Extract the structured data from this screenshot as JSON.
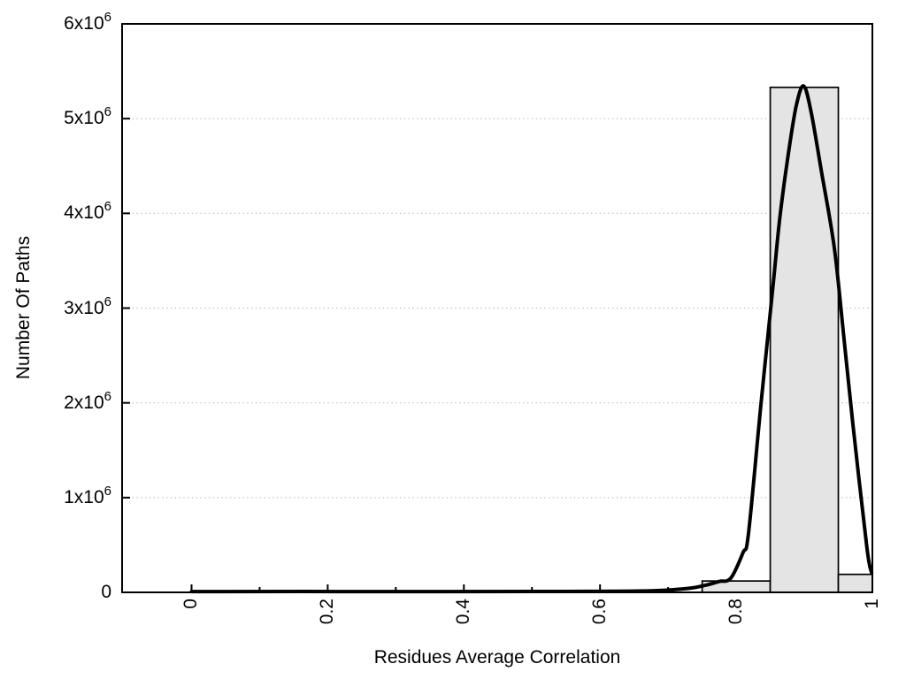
{
  "figure": {
    "xlabel": "Residues Average Correlation",
    "ylabel": "Number Of Paths"
  },
  "chart_data": {
    "type": "bar",
    "subtype": "histogram-with-fit-curve",
    "title": "",
    "xlabel": "Residues Average Correlation",
    "ylabel": "Number Of Paths",
    "xlim": [
      -0.102,
      1.0
    ],
    "ylim": [
      0,
      6000000
    ],
    "grid": "horizontal dotted gridlines at y major ticks",
    "legend": "none",
    "colors": {
      "background": "#ffffff",
      "axis": "#000000",
      "grid": "#bbbbbb",
      "text": "#000000",
      "bar_fill": "#e4e4e4",
      "bar_stroke": "#000000",
      "curve": "#000000"
    },
    "x_ticks": {
      "major": [
        0,
        0.2,
        0.4,
        0.6,
        0.8,
        1
      ],
      "major_labels": [
        "0",
        "0.2",
        "0.4",
        "0.6",
        "0.8",
        "1"
      ],
      "minor": [
        0.1,
        0.3,
        0.5,
        0.7,
        0.9
      ],
      "label_rotation_deg": -90
    },
    "y_ticks": {
      "values": [
        0,
        1000000,
        2000000,
        3000000,
        4000000,
        5000000,
        6000000
      ],
      "labels": [
        {
          "base": "0",
          "sup": ""
        },
        {
          "base": "1x10",
          "sup": "6"
        },
        {
          "base": "2x10",
          "sup": "6"
        },
        {
          "base": "3x10",
          "sup": "6"
        },
        {
          "base": "4x10",
          "sup": "6"
        },
        {
          "base": "5x10",
          "sup": "6"
        },
        {
          "base": "6x10",
          "sup": "6"
        }
      ]
    },
    "histogram": {
      "bin_width": 0.1,
      "bins": [
        {
          "x0": 0.75,
          "x1": 0.85,
          "center": 0.8,
          "count": 120000
        },
        {
          "x0": 0.85,
          "x1": 0.95,
          "center": 0.9,
          "count": 5330000
        },
        {
          "x0": 0.95,
          "x1": 1.05,
          "center": 1.0,
          "count": 190000
        }
      ]
    },
    "fit_curve": {
      "peak": {
        "x": 0.9,
        "count": 5345000
      },
      "stroke_width": 4,
      "points": [
        [
          0.0,
          8000
        ],
        [
          0.3,
          8000
        ],
        [
          0.5,
          9000
        ],
        [
          0.6,
          11000
        ],
        [
          0.68,
          18000
        ],
        [
          0.73,
          42000
        ],
        [
          0.755,
          75000
        ],
        [
          0.775,
          115000
        ],
        [
          0.792,
          150000
        ],
        [
          0.81,
          420000
        ],
        [
          0.818,
          620000
        ],
        [
          0.836,
          1960000
        ],
        [
          0.854,
          3230000
        ],
        [
          0.864,
          3950000
        ],
        [
          0.876,
          4600000
        ],
        [
          0.888,
          5130000
        ],
        [
          0.899,
          5345000
        ],
        [
          0.91,
          5070000
        ],
        [
          0.925,
          4450000
        ],
        [
          0.944,
          3640000
        ],
        [
          0.958,
          2700000
        ],
        [
          0.971,
          1800000
        ],
        [
          0.992,
          470000
        ],
        [
          0.999,
          205000
        ]
      ]
    }
  }
}
